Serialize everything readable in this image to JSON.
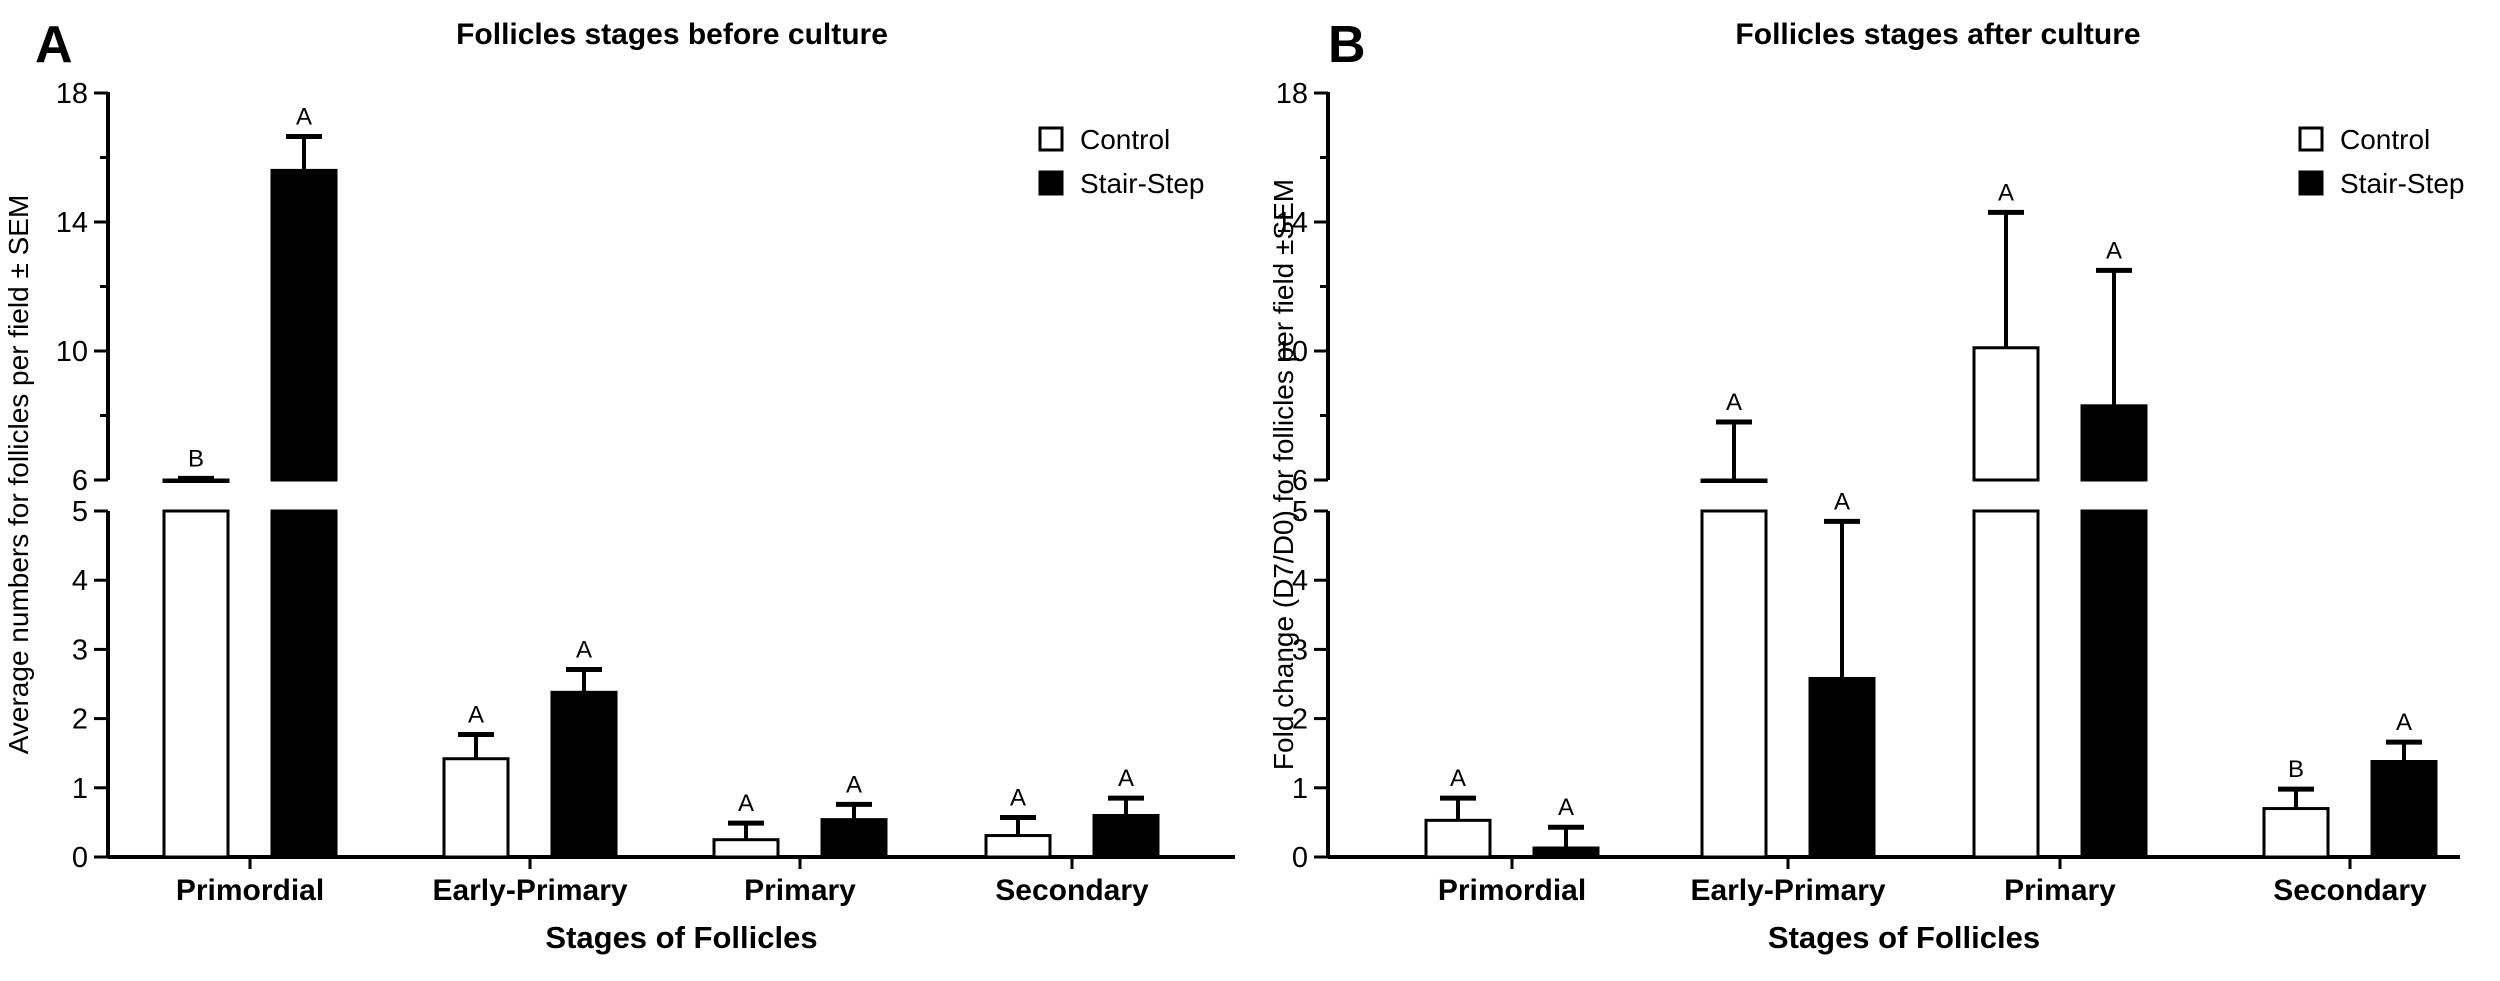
{
  "colors": {
    "control": "#ffffff",
    "stair_step": "#000000",
    "axis": "#000000"
  },
  "chart_data": [
    {
      "type": "bar",
      "panel": "A",
      "title": "Follicles stages before culture",
      "xlabel": "Stages of Follicles",
      "ylabel": "Average numbers for follicles per field ± SEM",
      "axis_break": {
        "lower_range": [
          0,
          5
        ],
        "upper_range": [
          6,
          18
        ]
      },
      "y_ticks_lower": [
        "0",
        "1",
        "2",
        "3",
        "4",
        "5"
      ],
      "y_ticks_upper": [
        "6",
        "10",
        "14",
        "18"
      ],
      "legend_position": "top-right",
      "categories": [
        "Primordial",
        "Early-Primary",
        "Primary",
        "Secondary"
      ],
      "series": [
        {
          "name": "Control",
          "values": [
            6.0,
            1.42,
            0.25,
            0.31
          ],
          "errors": [
            0.05,
            0.35,
            0.24,
            0.26
          ],
          "sig": [
            "B",
            "A",
            "A",
            "A"
          ]
        },
        {
          "name": "Stair-Step",
          "values": [
            15.6,
            2.38,
            0.54,
            0.6
          ],
          "errors": [
            1.05,
            0.33,
            0.22,
            0.25
          ],
          "sig": [
            "A",
            "A",
            "A",
            "A"
          ]
        }
      ]
    },
    {
      "type": "bar",
      "panel": "B",
      "title": "Follicles stages after culture",
      "xlabel": "Stages of Follicles",
      "ylabel": "Fold change (D7/D0)  for follicles per field ±SEM",
      "axis_break": {
        "lower_range": [
          0,
          5
        ],
        "upper_range": [
          6,
          18
        ]
      },
      "y_ticks_lower": [
        "0",
        "1",
        "2",
        "3",
        "4",
        "5"
      ],
      "y_ticks_upper": [
        "6",
        "10",
        "14",
        "18"
      ],
      "legend_position": "top-right",
      "categories": [
        "Primordial",
        "Early-Primary",
        "Primary",
        "Secondary"
      ],
      "series": [
        {
          "name": "Control",
          "values": [
            0.53,
            6.0,
            10.1,
            0.7
          ],
          "errors": [
            0.32,
            1.8,
            4.2,
            0.28
          ],
          "sig": [
            "A",
            "A",
            "A",
            "B"
          ]
        },
        {
          "name": "Stair-Step",
          "values": [
            0.13,
            2.58,
            8.3,
            1.38
          ],
          "errors": [
            0.3,
            2.27,
            4.2,
            0.28
          ],
          "sig": [
            "A",
            "A",
            "A",
            "A"
          ]
        }
      ]
    }
  ]
}
